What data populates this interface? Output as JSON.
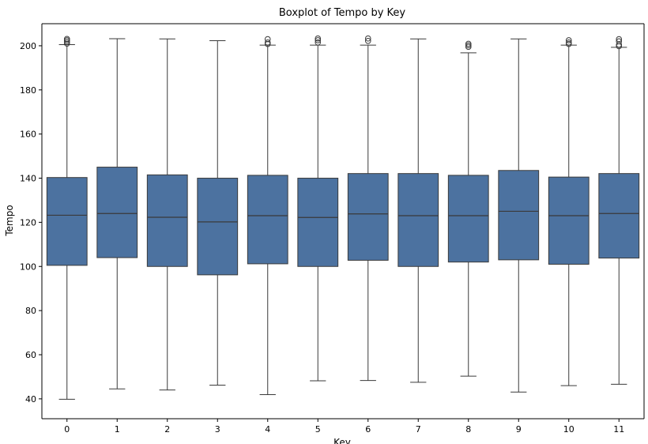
{
  "chart_data": {
    "type": "box",
    "title": "Boxplot of Tempo by Key",
    "xlabel": "Key",
    "ylabel": "Tempo",
    "ylim": [
      31,
      210
    ],
    "yticks": [
      40,
      60,
      80,
      100,
      120,
      140,
      160,
      180,
      200
    ],
    "grid": false,
    "legend": "none",
    "box_color": "#4c72a0",
    "edge_color": "#3a3a3a",
    "categories": [
      "0",
      "1",
      "2",
      "3",
      "4",
      "5",
      "6",
      "7",
      "8",
      "9",
      "10",
      "11"
    ],
    "boxes": [
      {
        "key": "0",
        "whisker_low": 39.8,
        "q1": 100.5,
        "median": 123.2,
        "q3": 140.3,
        "whisker_high": 200.5,
        "outliers": [
          201.0,
          201.8,
          202.5,
          203.1
        ]
      },
      {
        "key": "1",
        "whisker_low": 44.5,
        "q1": 104.0,
        "median": 124.0,
        "q3": 145.0,
        "whisker_high": 203.2,
        "outliers": []
      },
      {
        "key": "2",
        "whisker_low": 44.0,
        "q1": 100.0,
        "median": 122.3,
        "q3": 141.5,
        "whisker_high": 203.1,
        "outliers": []
      },
      {
        "key": "3",
        "whisker_low": 46.2,
        "q1": 96.2,
        "median": 120.2,
        "q3": 140.0,
        "whisker_high": 202.3,
        "outliers": []
      },
      {
        "key": "4",
        "whisker_low": 41.9,
        "q1": 101.2,
        "median": 123.0,
        "q3": 141.3,
        "whisker_high": 200.3,
        "outliers": [
          200.8,
          201.5,
          203.0
        ]
      },
      {
        "key": "5",
        "whisker_low": 48.2,
        "q1": 100.0,
        "median": 122.2,
        "q3": 140.0,
        "whisker_high": 200.3,
        "outliers": [
          201.5,
          202.5,
          203.3
        ]
      },
      {
        "key": "6",
        "whisker_low": 48.3,
        "q1": 102.8,
        "median": 123.8,
        "q3": 142.1,
        "whisker_high": 200.3,
        "outliers": [
          202.2,
          203.3
        ]
      },
      {
        "key": "7",
        "whisker_low": 47.5,
        "q1": 100.0,
        "median": 123.0,
        "q3": 142.1,
        "whisker_high": 203.1,
        "outliers": []
      },
      {
        "key": "8",
        "whisker_low": 50.3,
        "q1": 102.0,
        "median": 123.0,
        "q3": 141.3,
        "whisker_high": 196.8,
        "outliers": [
          199.5,
          200.2,
          200.9
        ]
      },
      {
        "key": "9",
        "whisker_low": 43.1,
        "q1": 103.0,
        "median": 125.0,
        "q3": 143.5,
        "whisker_high": 203.1,
        "outliers": []
      },
      {
        "key": "10",
        "whisker_low": 46.0,
        "q1": 101.0,
        "median": 123.0,
        "q3": 140.5,
        "whisker_high": 200.3,
        "outliers": [
          200.8,
          201.5,
          202.5
        ]
      },
      {
        "key": "11",
        "whisker_low": 46.6,
        "q1": 103.8,
        "median": 124.0,
        "q3": 142.1,
        "whisker_high": 199.3,
        "outliers": [
          199.8,
          200.5,
          202.0,
          203.0
        ]
      }
    ]
  }
}
